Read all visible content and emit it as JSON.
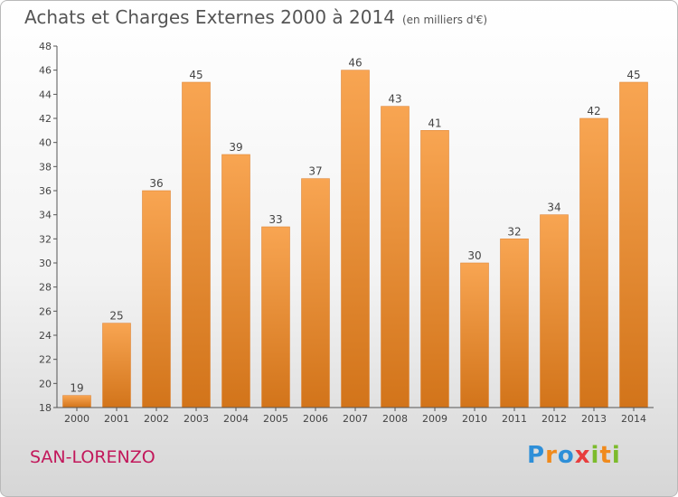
{
  "title": "Achats et Charges Externes 2000 à 2014",
  "subtitle": "(en milliers d'€)",
  "location": "SAN-LORENZO",
  "logo": {
    "letters": [
      "P",
      "r",
      "o",
      "x",
      "i",
      "t",
      "i"
    ],
    "colors": [
      "#2e8fd8",
      "#f08a1c",
      "#2e8fd8",
      "#e83d3d",
      "#7cbb2c",
      "#f08a1c",
      "#7cbb2c"
    ]
  },
  "colors": {
    "bar_light": "#f8a552",
    "bar_dark": "#d2741a",
    "axis": "#555555",
    "grid": "#d8d8d8"
  },
  "chart_data": {
    "type": "bar",
    "categories": [
      "2000",
      "2001",
      "2002",
      "2003",
      "2004",
      "2005",
      "2006",
      "2007",
      "2008",
      "2009",
      "2010",
      "2011",
      "2012",
      "2013",
      "2014"
    ],
    "values": [
      19,
      25,
      36,
      45,
      39,
      33,
      37,
      46,
      43,
      41,
      30,
      32,
      34,
      42,
      45
    ],
    "title": "Achats et Charges Externes 2000 à 2014",
    "subtitle": "(en milliers d'€)",
    "ylim": [
      18,
      48
    ],
    "yticks": [
      18,
      20,
      22,
      24,
      26,
      28,
      30,
      32,
      34,
      36,
      38,
      40,
      42,
      44,
      46,
      48
    ],
    "grid": false,
    "data_labels": true
  }
}
